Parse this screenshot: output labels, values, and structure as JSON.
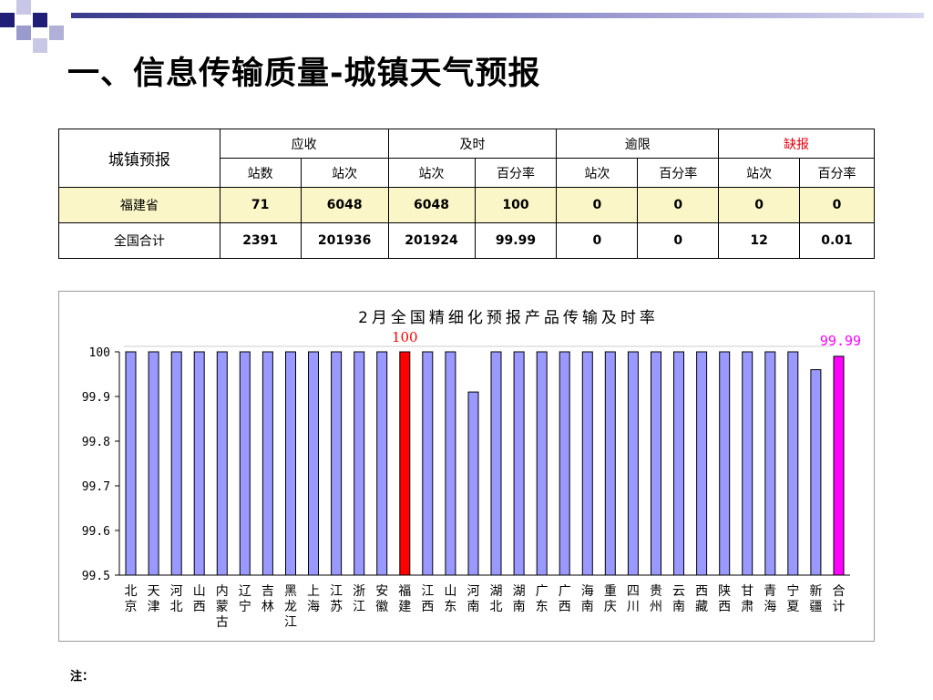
{
  "title": "一、信息传输质量-城镇天气预报",
  "colors": {
    "bar": "#9999ff",
    "highlight": "#ff0000",
    "total": "#ff00ff",
    "header_red": "#e8000b",
    "row_highlight": "#fbf6c7"
  },
  "table": {
    "corner": "城镇预报",
    "groups": [
      "应收",
      "及时",
      "逾限",
      "缺报"
    ],
    "subheaders": [
      "站数",
      "站次",
      "站次",
      "百分率",
      "站次",
      "百分率",
      "站次",
      "百分率"
    ],
    "rows": [
      {
        "name": "福建省",
        "cells": [
          "71",
          "6048",
          "6048",
          "100",
          "0",
          "0",
          "0",
          "0"
        ]
      },
      {
        "name": "全国合计",
        "cells": [
          "2391",
          "201936",
          "201924",
          "99.99",
          "0",
          "0",
          "12",
          "0.01"
        ]
      }
    ]
  },
  "chart_data": {
    "type": "bar",
    "title": "2月全国精细化预报产品传输及时率",
    "categories": [
      "北京",
      "天津",
      "河北",
      "山西",
      "内蒙古",
      "辽宁",
      "吉林",
      "黑龙江",
      "上海",
      "江苏",
      "浙江",
      "安徽",
      "福建",
      "江西",
      "山东",
      "河南",
      "湖北",
      "湖南",
      "广东",
      "广西",
      "海南",
      "重庆",
      "四川",
      "贵州",
      "云南",
      "西藏",
      "陕西",
      "甘肃",
      "青海",
      "宁夏",
      "新疆",
      "合计"
    ],
    "values": [
      100,
      100,
      100,
      100,
      100,
      100,
      100,
      100,
      100,
      100,
      100,
      100,
      100,
      100,
      100,
      99.91,
      100,
      100,
      100,
      100,
      100,
      100,
      100,
      100,
      100,
      100,
      100,
      100,
      100,
      100,
      99.96,
      99.99
    ],
    "ylim": [
      99.5,
      100
    ],
    "yticks": [
      "100",
      "99.9",
      "99.8",
      "99.7",
      "99.6",
      "99.5"
    ],
    "highlights": {
      "福建": "100",
      "合计": "99.99"
    },
    "grid": false
  },
  "note": "注："
}
